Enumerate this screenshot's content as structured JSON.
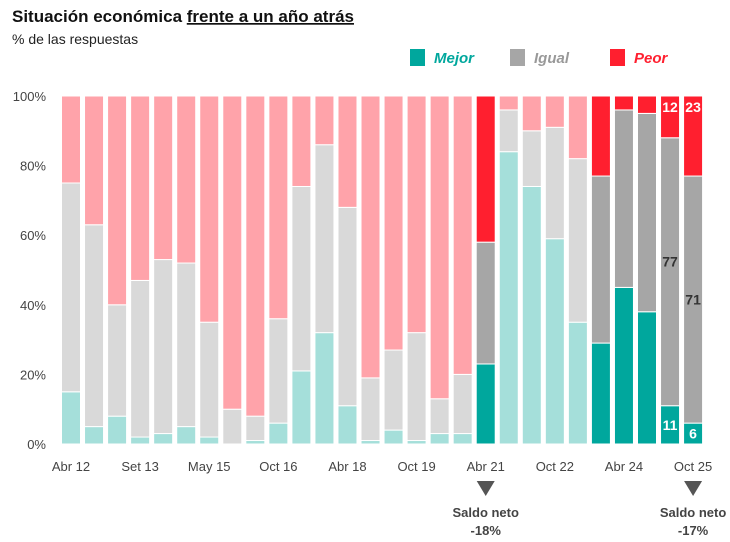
{
  "chart_data": {
    "type": "bar",
    "stacked": true,
    "title": "Situación económica frente a un año atrás",
    "title_plain": "Situación económica ",
    "title_underlined": "frente a un año atrás",
    "subtitle": "% de las respuestas",
    "ylim": [
      0,
      100
    ],
    "yticks": [
      "0%",
      "20%",
      "40%",
      "60%",
      "80%",
      "100%"
    ],
    "xtick_labels": [
      "Abr 12",
      "Set 13",
      "May 15",
      "Oct 16",
      "Abr 18",
      "Oct 19",
      "Abr 21",
      "Oct 22",
      "Abr 24",
      "Oct 25"
    ],
    "xtick_every": 3,
    "legend_position": "top-right",
    "series": [
      {
        "name": "Mejor",
        "color": "#00A79D",
        "light_color": "#A5DFDA",
        "values": [
          15,
          5,
          8,
          2,
          3,
          5,
          2,
          0,
          1,
          6,
          21,
          32,
          11,
          1,
          4,
          1,
          3,
          3,
          23,
          84,
          74,
          59,
          35,
          29,
          45,
          38,
          11,
          6
        ]
      },
      {
        "name": "Igual",
        "color": "#A6A6A6",
        "light_color": "#D9D9D9",
        "values": [
          60,
          58,
          32,
          45,
          50,
          47,
          33,
          10,
          7,
          30,
          53,
          54,
          57,
          18,
          23,
          31,
          10,
          17,
          35,
          12,
          16,
          32,
          47,
          48,
          51,
          57,
          77,
          71
        ]
      },
      {
        "name": "Peor",
        "color": "#FF1F2F",
        "light_color": "#FFA3AA",
        "values": [
          25,
          37,
          60,
          53,
          47,
          48,
          65,
          90,
          92,
          64,
          26,
          14,
          32,
          81,
          73,
          68,
          87,
          80,
          42,
          4,
          10,
          9,
          18,
          23,
          4,
          5,
          12,
          23
        ]
      }
    ],
    "highlighted_bars": [
      18,
      23,
      24,
      25,
      26,
      27
    ],
    "data_labels_bars": [
      26,
      27
    ],
    "annotations": [
      {
        "bar": 18,
        "line1": "Saldo neto",
        "line2": "-18%"
      },
      {
        "bar": 27,
        "line1": "Saldo neto",
        "line2": "-17%"
      }
    ]
  }
}
